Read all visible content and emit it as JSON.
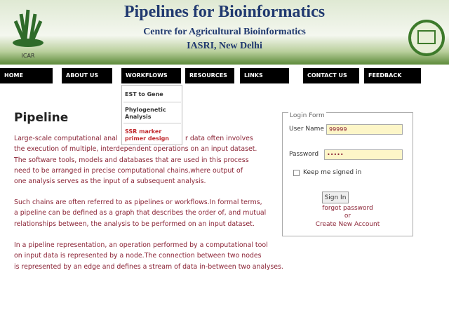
{
  "header": {
    "title": "Pipelines for Bioinformatics",
    "subtitle": "Centre for Agricultural Bioinformatics",
    "location": "IASRI, New Delhi",
    "logo_text": "ICAR"
  },
  "nav": [
    "HOME",
    "ABOUT US",
    "WORKFLOWS",
    "RESOURCES",
    "LINKS",
    "CONTACT US",
    "FEEDBACK"
  ],
  "dropdown": [
    "EST to Gene",
    "Phylogenetic Analysis",
    "SSR marker primer design"
  ],
  "content": {
    "heading": "Pipeline",
    "paragraphs": [
      [
        "Large-scale computational anal",
        "r data often involves",
        "the execution of multiple, interdependent operations on an input dataset.",
        "The software tools, models and databases that are used in this process",
        "need to be arranged in precise computational chains,where output of",
        "one analysis serves as the input of a subsequent analysis."
      ],
      [
        "Such chains are often referred to as pipelines or workflows.In formal terms,",
        "a pipeline can be defined as a graph that describes the order of, and mutual",
        "relationships between, the analysis to be performed on an input dataset."
      ],
      [
        "In a pipeline representation, an operation performed by a computational tool",
        "on input data is represented by a node.The connection between two nodes",
        "is represented by an edge and defines a stream of data in-between two analyses."
      ]
    ]
  },
  "login": {
    "legend": "Login Form",
    "username_label": "User Name",
    "username_value": "99999",
    "password_label": "Password",
    "password_value": "•••••",
    "remember": "Keep me signed in",
    "button": "Sign In",
    "forgot": "forgot password",
    "or": "or",
    "create": "Create New Account"
  }
}
